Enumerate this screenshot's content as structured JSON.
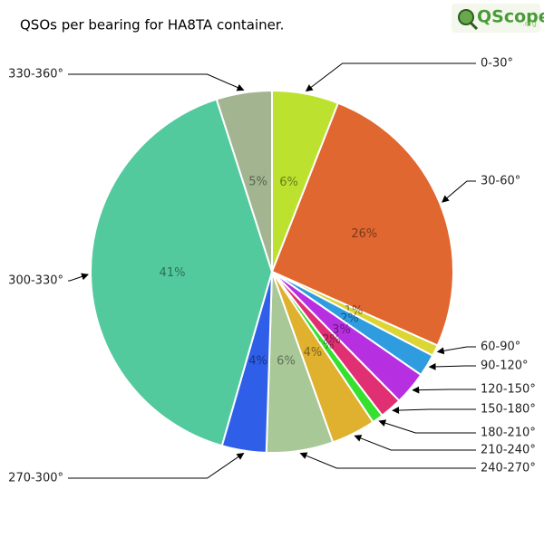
{
  "chart_data": {
    "type": "pie",
    "title": "QSOs per bearing for HA8TA container.",
    "logo": "QScope",
    "logo_suffix": ".org",
    "categories": [
      "0-30°",
      "30-60°",
      "60-90°",
      "90-120°",
      "120-150°",
      "150-180°",
      "180-210°",
      "210-240°",
      "240-270°",
      "270-300°",
      "300-330°",
      "330-360°"
    ],
    "values": [
      6,
      26,
      1,
      2,
      3,
      2,
      1,
      4,
      6,
      4,
      41,
      5
    ],
    "value_labels": [
      "6%",
      "26%",
      "1%",
      "2%",
      "3%",
      "2%",
      "1%",
      "4%",
      "6%",
      "4%",
      "41%",
      "5%"
    ],
    "colors": [
      "#bde12f",
      "#e0672f",
      "#dcd534",
      "#2f9ce0",
      "#b62fe0",
      "#e02f72",
      "#36e02f",
      "#e0b02f",
      "#a8c898",
      "#2f5fe9",
      "#53c99e",
      "#a3b490"
    ]
  }
}
